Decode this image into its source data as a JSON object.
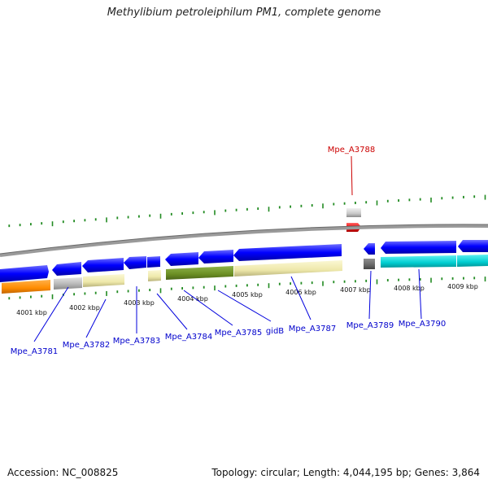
{
  "title": "Methylibium petroleiphilum PM1, complete genome",
  "footer": {
    "accession": "Accession: NC_008825",
    "summary": "Topology: circular; Length: 4,044,195 bp; Genes: 3,864"
  },
  "scale_labels": [
    "4001 kbp",
    "4002 kbp",
    "4003 kbp",
    "4004 kbp",
    "4005 kbp",
    "4006 kbp",
    "4007 kbp",
    "4008 kbp",
    "4009 kbp"
  ],
  "genes": [
    {
      "name": "Mpe_A3781",
      "color": "#0000ff"
    },
    {
      "name": "Mpe_A3782",
      "color": "#0000ff"
    },
    {
      "name": "Mpe_A3783",
      "color": "#0000ff"
    },
    {
      "name": "Mpe_A3784",
      "color": "#0000ff"
    },
    {
      "name": "Mpe_A3785",
      "color": "#0000ff"
    },
    {
      "name": "gidB",
      "color": "#0000ff"
    },
    {
      "name": "Mpe_A3787",
      "color": "#0000ff"
    },
    {
      "name": "Mpe_A3788",
      "color": "#cc0000",
      "highlighted": true
    },
    {
      "name": "Mpe_A3789",
      "color": "#0000ff"
    },
    {
      "name": "Mpe_A3790",
      "color": "#0000ff"
    }
  ],
  "colors": {
    "cds_strand": "#0000ff",
    "highlight": "#ee0000",
    "backbone": "#808080",
    "tick": "#228b22",
    "orange_category": "#ff8c00",
    "grey_category": "#b4b4b4",
    "khaki_category": "#eee8aa",
    "olive_category": "#6b8e23",
    "dark_grey_category": "#696969",
    "cyan_category": "#00ced1"
  }
}
